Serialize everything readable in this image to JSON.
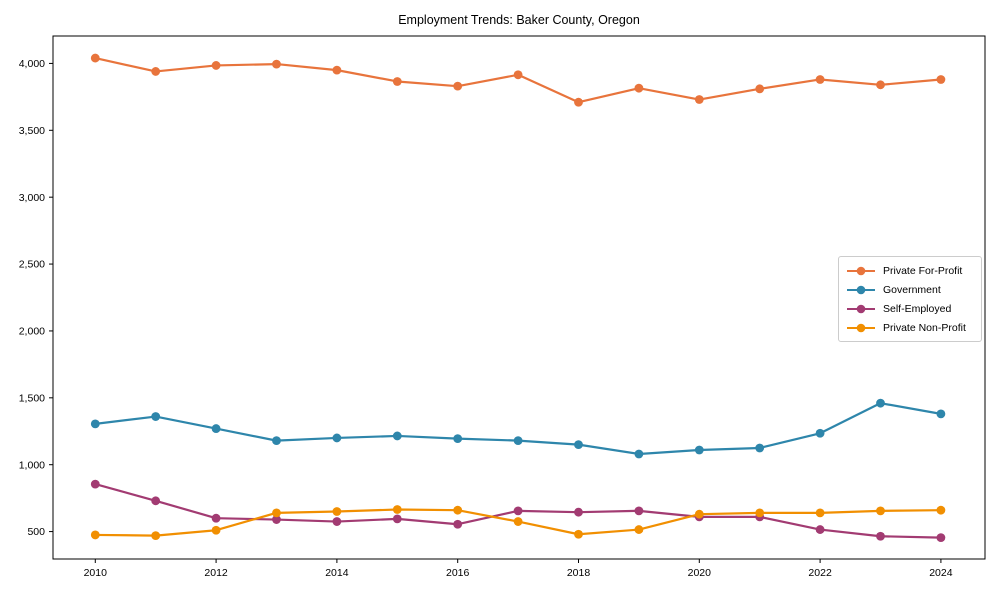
{
  "figure": {
    "title": "Employment Trends: Baker County, Oregon"
  },
  "chart_data": {
    "type": "line",
    "title": "Employment Trends: Baker County, Oregon",
    "xlabel": "",
    "ylabel": "",
    "x": [
      2010,
      2011,
      2012,
      2013,
      2014,
      2015,
      2016,
      2017,
      2018,
      2019,
      2020,
      2021,
      2022,
      2023,
      2024
    ],
    "series": [
      {
        "name": "Private For-Profit",
        "color": "#e8743c",
        "values": [
          4040,
          3940,
          3985,
          3995,
          3950,
          3865,
          3830,
          3915,
          3710,
          3815,
          3730,
          3810,
          3880,
          3840,
          3880
        ]
      },
      {
        "name": "Government",
        "color": "#2e86ab",
        "values": [
          1305,
          1360,
          1270,
          1180,
          1200,
          1215,
          1195,
          1180,
          1150,
          1080,
          1110,
          1125,
          1235,
          1460,
          1380
        ]
      },
      {
        "name": "Self-Employed",
        "color": "#a23b72",
        "values": [
          855,
          730,
          600,
          590,
          575,
          595,
          555,
          655,
          645,
          655,
          610,
          610,
          515,
          465,
          455
        ]
      },
      {
        "name": "Private Non-Profit",
        "color": "#f18f01",
        "values": [
          475,
          470,
          510,
          640,
          650,
          665,
          660,
          575,
          480,
          515,
          630,
          640,
          640,
          655,
          660
        ]
      }
    ],
    "xticks": [
      2010,
      2012,
      2014,
      2016,
      2018,
      2020,
      2022,
      2024
    ],
    "xtick_labels": [
      "2010",
      "2012",
      "2014",
      "2016",
      "2018",
      "2020",
      "2022",
      "2024"
    ],
    "yticks": [
      500,
      1000,
      1500,
      2000,
      2500,
      3000,
      3500,
      4000
    ],
    "ytick_labels": [
      "500",
      "1,000",
      "1,500",
      "2,000",
      "2,500",
      "3,000",
      "3,500",
      "4,000"
    ],
    "xlim": [
      2009.3,
      2024.73
    ],
    "ylim": [
      295,
      4205
    ],
    "grid": false,
    "legend_position": "center right",
    "marker": "circle",
    "frame": "full-box"
  }
}
